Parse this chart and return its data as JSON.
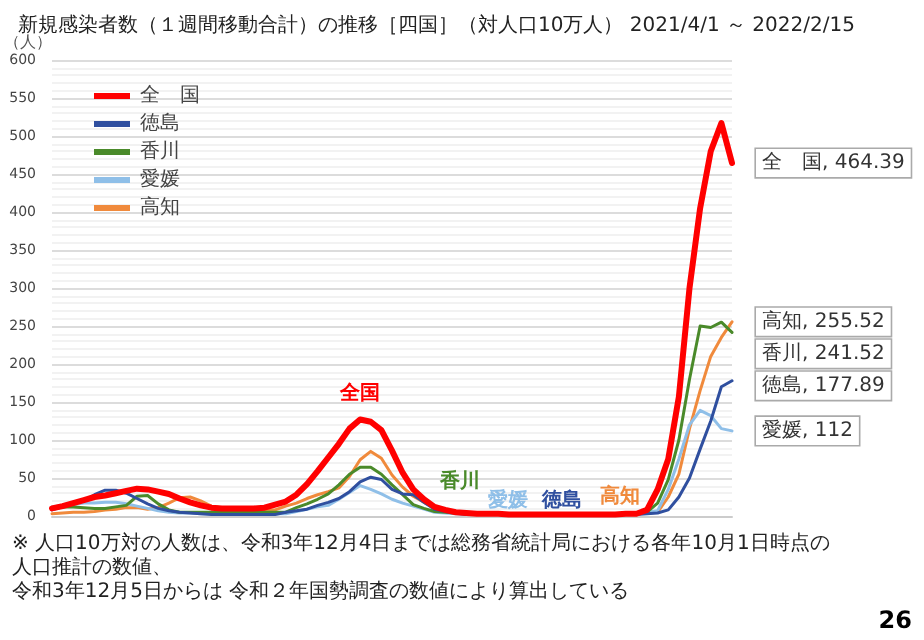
{
  "chart_data": {
    "type": "line",
    "title": "新規感染者数（１週間移動合計）の推移［四国］（対人口10万人） 2021/4/1 ～ 2022/2/15",
    "ylabel": "（人）",
    "ylim": [
      0,
      600
    ],
    "yticks": [
      0,
      50,
      100,
      150,
      200,
      250,
      300,
      350,
      400,
      450,
      500,
      550,
      600
    ],
    "categories": [
      null,
      null,
      null,
      null,
      null,
      null,
      null,
      null,
      null,
      null,
      null,
      null,
      null,
      null,
      null,
      null,
      null,
      null,
      null,
      null,
      null,
      null,
      null,
      null,
      null,
      null,
      null,
      null,
      null,
      null,
      null,
      null,
      null,
      null,
      null,
      null,
      null,
      null,
      null,
      null,
      null,
      null,
      null,
      null,
      null,
      null,
      null,
      null,
      null,
      null,
      null,
      null,
      null,
      null,
      null,
      null,
      null,
      null,
      null,
      null,
      null,
      null,
      null,
      null,
      null
    ],
    "grid": "y",
    "legend": "top left",
    "tick_labels": "y",
    "line_style": "solid",
    "series": [
      {
        "name": "全　国",
        "color": "#ff0000",
        "values": [
          10,
          13,
          17,
          21,
          25,
          27,
          30,
          33,
          36,
          35,
          32,
          29,
          23,
          18,
          14,
          11,
          10,
          10,
          10,
          10,
          11,
          15,
          19,
          28,
          42,
          59,
          77,
          95,
          115,
          127,
          124,
          113,
          86,
          57,
          35,
          22,
          12,
          8,
          5,
          4,
          3,
          3,
          3,
          2,
          2,
          2,
          2,
          2,
          2,
          2,
          2,
          2,
          2,
          2,
          3,
          3,
          8,
          35,
          75,
          157,
          300,
          405,
          480,
          517,
          464.39
        ],
        "value_labels": [
          null,
          null,
          null,
          null,
          null,
          null,
          null,
          null,
          null,
          null,
          null,
          null,
          null,
          null,
          null,
          null,
          null,
          null,
          null,
          null,
          null,
          null,
          null,
          null,
          null,
          null,
          null,
          null,
          null,
          null,
          null,
          null,
          null,
          null,
          null,
          null,
          null,
          null,
          null,
          null,
          null,
          null,
          null,
          null,
          null,
          null,
          null,
          null,
          null,
          null,
          null,
          null,
          null,
          null,
          null,
          null,
          null,
          null,
          null,
          null,
          null,
          null,
          null,
          null,
          "全　国, 464.39"
        ]
      },
      {
        "name": "徳島",
        "color": "#2f4f9f",
        "values": [
          8,
          12,
          16,
          20,
          28,
          34,
          34,
          30,
          23,
          16,
          10,
          7,
          5,
          4,
          3,
          2,
          2,
          2,
          2,
          2,
          2,
          2,
          5,
          7,
          9,
          14,
          18,
          23,
          32,
          45,
          51,
          48,
          35,
          29,
          28,
          18,
          9,
          6,
          4,
          2,
          2,
          2,
          2,
          2,
          2,
          2,
          2,
          2,
          2,
          2,
          2,
          2,
          2,
          2,
          2,
          2,
          3,
          4,
          8,
          25,
          50,
          88,
          125,
          170,
          177.89
        ],
        "value_labels": [
          null,
          null,
          null,
          null,
          null,
          null,
          null,
          null,
          null,
          null,
          null,
          null,
          null,
          null,
          null,
          null,
          null,
          null,
          null,
          null,
          null,
          null,
          null,
          null,
          null,
          null,
          null,
          null,
          null,
          null,
          null,
          null,
          null,
          null,
          null,
          null,
          null,
          null,
          null,
          null,
          null,
          null,
          null,
          null,
          null,
          null,
          null,
          null,
          null,
          null,
          null,
          null,
          null,
          null,
          null,
          null,
          null,
          null,
          null,
          null,
          null,
          null,
          null,
          null,
          "徳島, 177.89"
        ]
      },
      {
        "name": "香川",
        "color": "#4a8a2a",
        "values": [
          10,
          12,
          12,
          11,
          10,
          10,
          12,
          14,
          26,
          27,
          16,
          8,
          5,
          5,
          5,
          5,
          5,
          5,
          5,
          5,
          5,
          5,
          5,
          11,
          16,
          22,
          29,
          41,
          55,
          64,
          64,
          55,
          41,
          28,
          15,
          10,
          6,
          5,
          4,
          3,
          3,
          3,
          3,
          3,
          3,
          3,
          3,
          3,
          3,
          3,
          3,
          3,
          3,
          3,
          3,
          4,
          5,
          17,
          48,
          100,
          180,
          250,
          248,
          255,
          241.52
        ],
        "value_labels": [
          null,
          null,
          null,
          null,
          null,
          null,
          null,
          null,
          null,
          null,
          null,
          null,
          null,
          null,
          null,
          null,
          null,
          null,
          null,
          null,
          null,
          null,
          null,
          null,
          null,
          null,
          null,
          null,
          null,
          null,
          null,
          null,
          null,
          null,
          null,
          null,
          null,
          null,
          null,
          null,
          null,
          null,
          null,
          null,
          null,
          null,
          null,
          null,
          null,
          null,
          null,
          null,
          null,
          null,
          null,
          null,
          null,
          null,
          null,
          null,
          null,
          null,
          null,
          null,
          "香川, 241.52"
        ]
      },
      {
        "name": "愛媛",
        "color": "#8fbfe8",
        "values": [
          12,
          14,
          15,
          17,
          17,
          18,
          18,
          16,
          13,
          10,
          7,
          5,
          4,
          4,
          3,
          3,
          3,
          3,
          3,
          3,
          3,
          3,
          3,
          6,
          9,
          12,
          14,
          22,
          31,
          40,
          35,
          29,
          22,
          17,
          13,
          9,
          5,
          4,
          3,
          2,
          2,
          2,
          2,
          2,
          2,
          2,
          2,
          2,
          2,
          2,
          2,
          2,
          2,
          2,
          2,
          3,
          5,
          7,
          35,
          75,
          120,
          139,
          132,
          115,
          112
        ],
        "value_labels": [
          null,
          null,
          null,
          null,
          null,
          null,
          null,
          null,
          null,
          null,
          null,
          null,
          null,
          null,
          null,
          null,
          null,
          null,
          null,
          null,
          null,
          null,
          null,
          null,
          null,
          null,
          null,
          null,
          null,
          null,
          null,
          null,
          null,
          null,
          null,
          null,
          null,
          null,
          null,
          null,
          null,
          null,
          null,
          null,
          null,
          null,
          null,
          null,
          null,
          null,
          null,
          null,
          null,
          null,
          null,
          null,
          null,
          null,
          null,
          null,
          null,
          null,
          null,
          null,
          "愛媛, 112"
        ]
      },
      {
        "name": "高知",
        "color": "#f08a3c",
        "values": [
          3,
          4,
          5,
          5,
          6,
          8,
          9,
          11,
          11,
          9,
          11,
          17,
          24,
          25,
          20,
          13,
          11,
          10,
          9,
          9,
          8,
          8,
          13,
          17,
          23,
          28,
          32,
          37,
          52,
          74,
          85,
          76,
          54,
          38,
          26,
          18,
          11,
          8,
          6,
          4,
          3,
          3,
          3,
          3,
          3,
          3,
          3,
          3,
          3,
          3,
          3,
          3,
          3,
          3,
          3,
          3,
          4,
          5,
          25,
          55,
          115,
          165,
          210,
          235,
          255.52
        ],
        "value_labels": [
          null,
          null,
          null,
          null,
          null,
          null,
          null,
          null,
          null,
          null,
          null,
          null,
          null,
          null,
          null,
          null,
          null,
          null,
          null,
          null,
          null,
          null,
          null,
          null,
          null,
          null,
          null,
          null,
          null,
          null,
          null,
          null,
          null,
          null,
          null,
          null,
          null,
          null,
          null,
          null,
          null,
          null,
          null,
          null,
          null,
          null,
          null,
          null,
          null,
          null,
          null,
          null,
          null,
          null,
          null,
          null,
          null,
          null,
          null,
          null,
          null,
          null,
          null,
          null,
          "高知, 255.52"
        ]
      }
    ],
    "annotations": [
      "全国",
      "香川",
      "愛媛",
      "徳島",
      "高知",
      "※ 人口10万対の人数は、令和3年12月4日までは総務省統計局における各年10月1日時点の人口推計の数値、",
      "令和3年12月5日からは 令和２年国勢調査の数値により算出している",
      "26"
    ]
  }
}
